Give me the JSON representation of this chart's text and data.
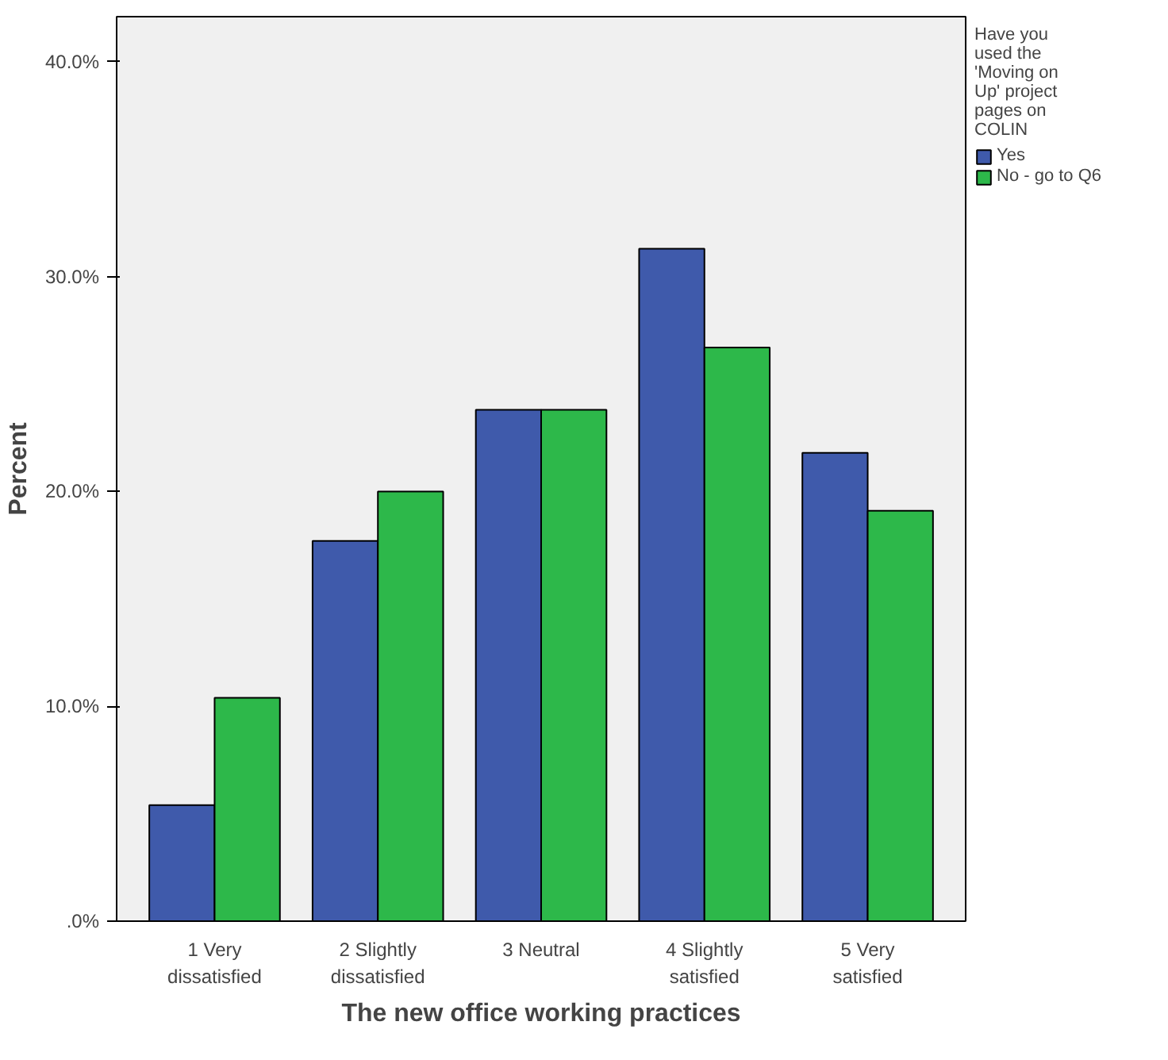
{
  "chart_data": {
    "type": "bar",
    "xlabel": "The new office working practices",
    "ylabel": "Percent",
    "legend_title": "Have you used the 'Moving on Up' project pages on COLIN",
    "categories": [
      "1 Very dissatisfied",
      "2 Slightly dissatisfied",
      "3 Neutral",
      "4 Slightly satisfied",
      "5 Very satisfied"
    ],
    "series": [
      {
        "name": "Yes",
        "color": "#3f5aab",
        "values": [
          5.4,
          17.7,
          23.8,
          31.3,
          21.8
        ]
      },
      {
        "name": "No - go to Q6",
        "color": "#2db84a",
        "values": [
          10.4,
          20.0,
          23.8,
          26.7,
          19.1
        ]
      }
    ],
    "ylim": [
      0,
      42.1
    ],
    "yticks": [
      {
        "value": 0,
        "label": ".0%"
      },
      {
        "value": 10,
        "label": "10.0%"
      },
      {
        "value": 20,
        "label": "20.0%"
      },
      {
        "value": 30,
        "label": "30.0%"
      },
      {
        "value": 40,
        "label": "40.0%"
      }
    ],
    "grid": false,
    "legend": "top right"
  }
}
